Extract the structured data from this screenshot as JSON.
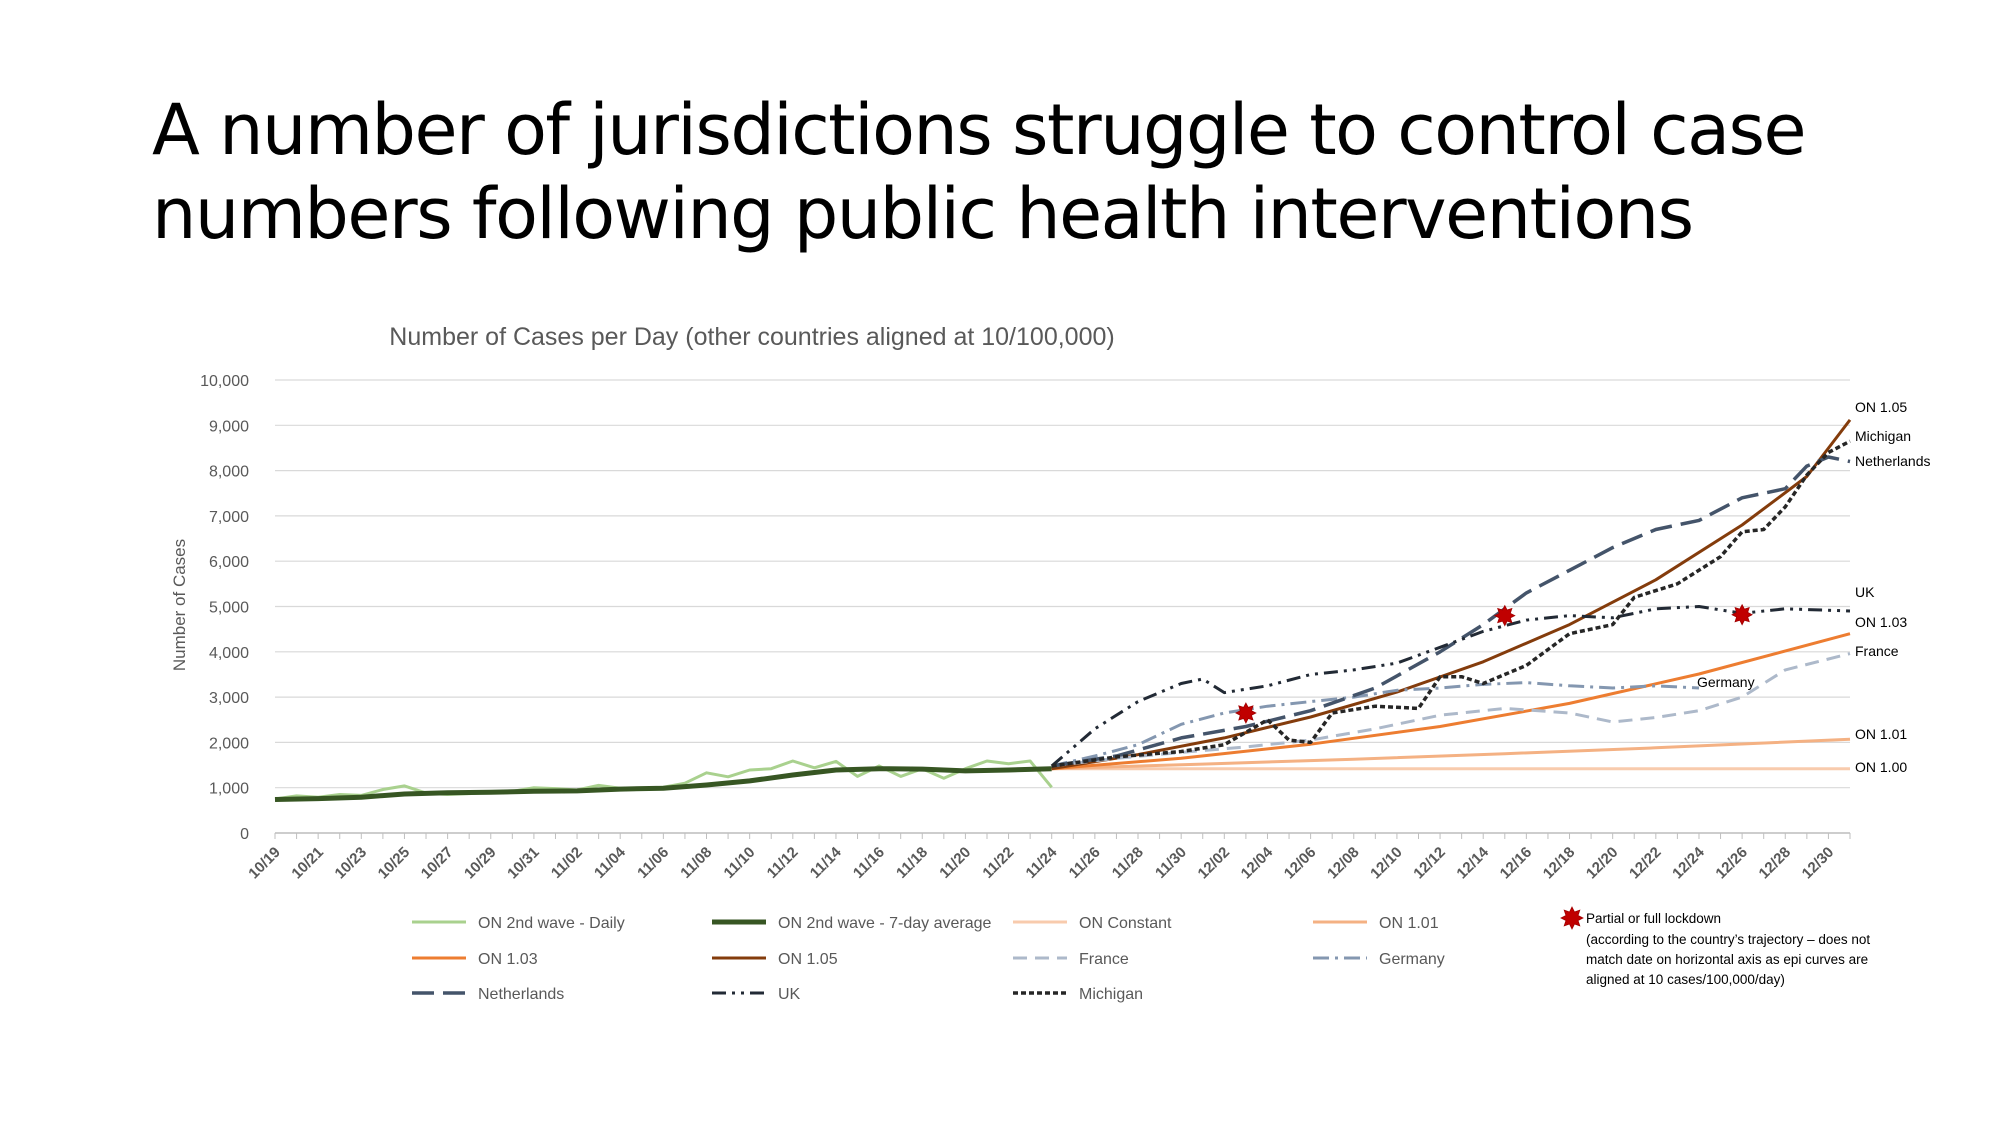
{
  "slide": {
    "title_line1": "A number of jurisdictions struggle to control case",
    "title_line2": "numbers following public health interventions"
  },
  "chart_data": {
    "type": "line",
    "title": "Number of Cases per Day (other countries aligned at 10/100,000)",
    "xlabel": "",
    "ylabel": "Number of Cases",
    "ylim": [
      0,
      10000
    ],
    "yticks": [
      0,
      1000,
      2000,
      3000,
      4000,
      5000,
      6000,
      7000,
      8000,
      9000,
      10000
    ],
    "ytick_labels": [
      "0",
      "1,000",
      "2,000",
      "3,000",
      "4,000",
      "5,000",
      "6,000",
      "7,000",
      "8,000",
      "9,000",
      "10,000"
    ],
    "x_start": "10/19",
    "x_end": "12/31",
    "xtick_labels": [
      "10/19",
      "10/21",
      "10/23",
      "10/25",
      "10/27",
      "10/29",
      "10/31",
      "11/02",
      "11/04",
      "11/06",
      "11/08",
      "11/10",
      "11/12",
      "11/14",
      "11/16",
      "11/18",
      "11/20",
      "11/22",
      "11/24",
      "11/26",
      "11/28",
      "11/30",
      "12/02",
      "12/04",
      "12/06",
      "12/08",
      "12/10",
      "12/12",
      "12/14",
      "12/16",
      "12/18",
      "12/20",
      "12/22",
      "12/24",
      "12/26",
      "12/28",
      "12/30"
    ],
    "grid": "horizontal",
    "legend_position": "bottom",
    "series": [
      {
        "name": "ON 2nd wave - Daily",
        "color": "#a9d18e",
        "style": "solid",
        "width": 3,
        "points": [
          [
            "10/19",
            750
          ],
          [
            "10/20",
            820
          ],
          [
            "10/21",
            790
          ],
          [
            "10/22",
            850
          ],
          [
            "10/23",
            830
          ],
          [
            "10/24",
            960
          ],
          [
            "10/25",
            1040
          ],
          [
            "10/26",
            880
          ],
          [
            "10/27",
            850
          ],
          [
            "10/28",
            870
          ],
          [
            "10/29",
            900
          ],
          [
            "10/30",
            920
          ],
          [
            "10/31",
            1000
          ],
          [
            "11/01",
            980
          ],
          [
            "11/02",
            950
          ],
          [
            "11/03",
            1050
          ],
          [
            "11/04",
            990
          ],
          [
            "11/05",
            980
          ],
          [
            "11/06",
            1010
          ],
          [
            "11/07",
            1100
          ],
          [
            "11/08",
            1330
          ],
          [
            "11/09",
            1240
          ],
          [
            "11/10",
            1390
          ],
          [
            "11/11",
            1420
          ],
          [
            "11/12",
            1590
          ],
          [
            "11/13",
            1440
          ],
          [
            "11/14",
            1580
          ],
          [
            "11/15",
            1250
          ],
          [
            "11/16",
            1480
          ],
          [
            "11/17",
            1250
          ],
          [
            "11/18",
            1420
          ],
          [
            "11/19",
            1210
          ],
          [
            "11/20",
            1420
          ],
          [
            "11/21",
            1590
          ],
          [
            "11/22",
            1530
          ],
          [
            "11/23",
            1590
          ],
          [
            "11/24",
            1009
          ]
        ]
      },
      {
        "name": "ON 2nd wave - 7-day average",
        "color": "#375623",
        "style": "solid",
        "width": 5,
        "points": [
          [
            "10/19",
            740
          ],
          [
            "10/21",
            760
          ],
          [
            "10/23",
            790
          ],
          [
            "10/25",
            860
          ],
          [
            "10/27",
            890
          ],
          [
            "10/29",
            900
          ],
          [
            "10/31",
            920
          ],
          [
            "11/02",
            930
          ],
          [
            "11/04",
            970
          ],
          [
            "11/06",
            990
          ],
          [
            "11/08",
            1060
          ],
          [
            "11/10",
            1150
          ],
          [
            "11/12",
            1280
          ],
          [
            "11/14",
            1390
          ],
          [
            "11/16",
            1420
          ],
          [
            "11/18",
            1410
          ],
          [
            "11/20",
            1370
          ],
          [
            "11/22",
            1390
          ],
          [
            "11/24",
            1420
          ]
        ]
      },
      {
        "name": "ON Constant",
        "color": "#f8cbad",
        "style": "solid",
        "width": 3,
        "points": [
          [
            "11/24",
            1420
          ],
          [
            "12/31",
            1420
          ]
        ],
        "end_label": "ON 1.00"
      },
      {
        "name": "ON 1.01",
        "color": "#f4b183",
        "style": "solid",
        "width": 3,
        "points": [
          [
            "11/24",
            1420
          ],
          [
            "12/01",
            1520
          ],
          [
            "12/08",
            1630
          ],
          [
            "12/15",
            1750
          ],
          [
            "12/22",
            1880
          ],
          [
            "12/31",
            2070
          ]
        ],
        "end_label": "ON 1.01"
      },
      {
        "name": "ON 1.03",
        "color": "#ed7d31",
        "style": "solid",
        "width": 3,
        "points": [
          [
            "11/24",
            1420
          ],
          [
            "11/30",
            1650
          ],
          [
            "12/06",
            1960
          ],
          [
            "12/12",
            2350
          ],
          [
            "12/18",
            2860
          ],
          [
            "12/24",
            3510
          ],
          [
            "12/31",
            4400
          ]
        ],
        "end_label": "ON 1.03"
      },
      {
        "name": "ON 1.05",
        "color": "#843c0c",
        "style": "solid",
        "width": 3,
        "points": [
          [
            "11/24",
            1420
          ],
          [
            "11/28",
            1730
          ],
          [
            "12/02",
            2100
          ],
          [
            "12/06",
            2560
          ],
          [
            "12/10",
            3110
          ],
          [
            "12/14",
            3780
          ],
          [
            "12/18",
            4600
          ],
          [
            "12/22",
            5590
          ],
          [
            "12/26",
            6800
          ],
          [
            "12/29",
            7870
          ],
          [
            "12/31",
            9120
          ]
        ],
        "end_label": "ON 1.05"
      },
      {
        "name": "France",
        "color": "#adb9ca",
        "style": "dash",
        "width": 3,
        "points": [
          [
            "11/24",
            1480
          ],
          [
            "11/27",
            1650
          ],
          [
            "11/30",
            1780
          ],
          [
            "12/03",
            1900
          ],
          [
            "12/06",
            2050
          ],
          [
            "12/09",
            2300
          ],
          [
            "12/12",
            2600
          ],
          [
            "12/15",
            2750
          ],
          [
            "12/18",
            2650
          ],
          [
            "12/20",
            2450
          ],
          [
            "12/22",
            2550
          ],
          [
            "12/24",
            2700
          ],
          [
            "12/26",
            3000
          ],
          [
            "12/28",
            3600
          ],
          [
            "12/31",
            3960
          ]
        ],
        "end_label": "France"
      },
      {
        "name": "Germany",
        "color": "#8497b0",
        "style": "dashdot",
        "width": 3,
        "points": [
          [
            "11/24",
            1480
          ],
          [
            "11/26",
            1700
          ],
          [
            "11/28",
            1950
          ],
          [
            "11/30",
            2400
          ],
          [
            "12/02",
            2650
          ],
          [
            "12/04",
            2800
          ],
          [
            "12/06",
            2900
          ],
          [
            "12/08",
            3000
          ],
          [
            "12/10",
            3150
          ],
          [
            "12/12",
            3200
          ],
          [
            "12/14",
            3280
          ],
          [
            "12/16",
            3320
          ],
          [
            "12/18",
            3250
          ],
          [
            "12/20",
            3200
          ],
          [
            "12/22",
            3250
          ],
          [
            "12/24",
            3200
          ]
        ],
        "end_label": "Germany"
      },
      {
        "name": "Netherlands",
        "color": "#44546a",
        "style": "longdash",
        "width": 3.5,
        "points": [
          [
            "11/24",
            1480
          ],
          [
            "11/27",
            1700
          ],
          [
            "11/30",
            2100
          ],
          [
            "12/03",
            2350
          ],
          [
            "12/06",
            2700
          ],
          [
            "12/09",
            3200
          ],
          [
            "12/12",
            4000
          ],
          [
            "12/14",
            4600
          ],
          [
            "12/16",
            5300
          ],
          [
            "12/18",
            5800
          ],
          [
            "12/20",
            6300
          ],
          [
            "12/22",
            6700
          ],
          [
            "12/24",
            6900
          ],
          [
            "12/26",
            7400
          ],
          [
            "12/28",
            7600
          ],
          [
            "12/29",
            8100
          ],
          [
            "12/30",
            8300
          ],
          [
            "12/31",
            8200
          ]
        ],
        "end_label": "Netherlands"
      },
      {
        "name": "UK",
        "color": "#222a35",
        "style": "dashdotdot",
        "width": 3,
        "points": [
          [
            "11/24",
            1480
          ],
          [
            "11/26",
            2300
          ],
          [
            "11/28",
            2900
          ],
          [
            "11/30",
            3300
          ],
          [
            "12/01",
            3400
          ],
          [
            "12/02",
            3100
          ],
          [
            "12/04",
            3250
          ],
          [
            "12/06",
            3500
          ],
          [
            "12/08",
            3600
          ],
          [
            "12/10",
            3750
          ],
          [
            "12/12",
            4100
          ],
          [
            "12/14",
            4450
          ],
          [
            "12/16",
            4700
          ],
          [
            "12/18",
            4800
          ],
          [
            "12/20",
            4750
          ],
          [
            "12/22",
            4950
          ],
          [
            "12/24",
            5000
          ],
          [
            "12/26",
            4850
          ],
          [
            "12/28",
            4950
          ],
          [
            "12/31",
            4900
          ]
        ],
        "end_label": "UK"
      },
      {
        "name": "Michigan",
        "color": "#262626",
        "style": "dot",
        "width": 3.5,
        "points": [
          [
            "11/24",
            1480
          ],
          [
            "11/27",
            1680
          ],
          [
            "11/30",
            1800
          ],
          [
            "12/02",
            1950
          ],
          [
            "12/04",
            2500
          ],
          [
            "12/05",
            2050
          ],
          [
            "12/06",
            2000
          ],
          [
            "12/07",
            2650
          ],
          [
            "12/09",
            2800
          ],
          [
            "12/11",
            2750
          ],
          [
            "12/12",
            3450
          ],
          [
            "12/13",
            3450
          ],
          [
            "12/14",
            3300
          ],
          [
            "12/16",
            3700
          ],
          [
            "12/18",
            4400
          ],
          [
            "12/20",
            4600
          ],
          [
            "12/21",
            5200
          ],
          [
            "12/23",
            5500
          ],
          [
            "12/25",
            6100
          ],
          [
            "12/26",
            6650
          ],
          [
            "12/27",
            6700
          ],
          [
            "12/28",
            7200
          ],
          [
            "12/29",
            7900
          ],
          [
            "12/30",
            8400
          ],
          [
            "12/31",
            8650
          ]
        ],
        "end_label": "Michigan"
      }
    ],
    "markers": [
      {
        "name": "Partial or full lockdown",
        "x": "12/03",
        "y": 2650
      },
      {
        "name": "Partial or full lockdown",
        "x": "12/15",
        "y": 4800
      },
      {
        "name": "Partial or full lockdown",
        "x": "12/26",
        "y": 4820
      }
    ],
    "marker_color": "#c00000",
    "marker_legend": {
      "label": "Partial or full lockdown",
      "note_lines": [
        "(according to the country’s trajectory – does not",
        "match date on horizontal axis as epi curves are",
        "aligned at 10 cases/100,000/day)"
      ]
    }
  }
}
